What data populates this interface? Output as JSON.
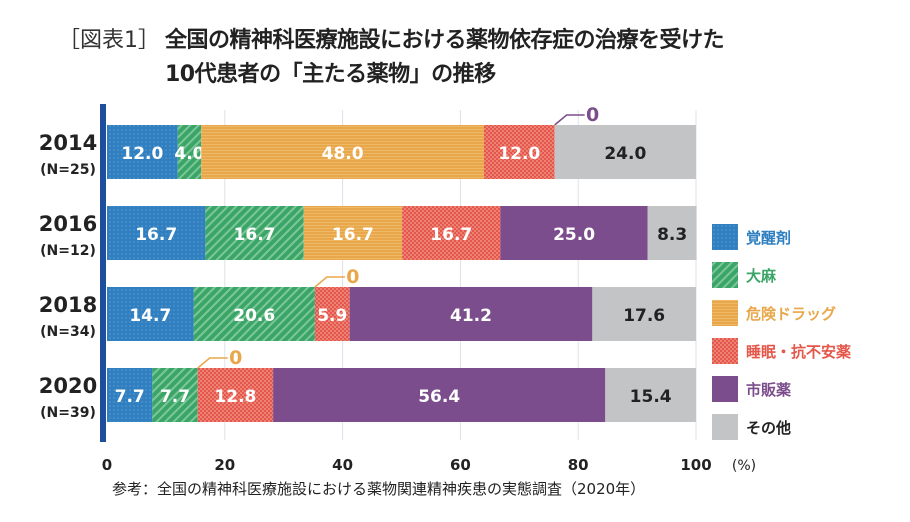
{
  "header": {
    "figure_label": "［図表1］",
    "title_line1": "全国の精神科医療施設における薬物依存症の治療を受けた",
    "title_line2": "10代患者の「主たる薬物」の推移"
  },
  "source": "参考：全国の精神科医療施設における薬物関連精神疾患の実態調査（2020年）",
  "chart_data": {
    "type": "bar",
    "orientation": "horizontal",
    "stacked": true,
    "categories": [
      {
        "year": "2014",
        "n": "(N=25)"
      },
      {
        "year": "2016",
        "n": "(N=12)"
      },
      {
        "year": "2018",
        "n": "(N=34)"
      },
      {
        "year": "2020",
        "n": "(N=39)"
      }
    ],
    "series": [
      {
        "name": "覚醒剤",
        "color": "#2f7fc1",
        "pattern": "dots",
        "values": [
          12.0,
          16.7,
          14.7,
          7.7
        ]
      },
      {
        "name": "大麻",
        "color": "#3aa566",
        "pattern": "stripes",
        "values": [
          4.0,
          16.7,
          20.6,
          7.7
        ]
      },
      {
        "name": "危険ドラッグ",
        "color": "#e9a74b",
        "pattern": "lines",
        "values": [
          48.0,
          16.7,
          0,
          0
        ]
      },
      {
        "name": "睡眠・抗不安薬",
        "color": "#e4574a",
        "pattern": "checker",
        "values": [
          12.0,
          16.7,
          5.9,
          12.8
        ]
      },
      {
        "name": "市販薬",
        "color": "#7b4d8c",
        "pattern": "solid",
        "values": [
          0,
          25.0,
          41.2,
          56.4
        ]
      },
      {
        "name": "その他",
        "color": "#c3c4c6",
        "pattern": "solid",
        "values": [
          24.0,
          8.3,
          17.6,
          15.4
        ]
      }
    ],
    "value_labels": [
      [
        "12.0",
        "4.0",
        "48.0",
        "12.0",
        "0",
        "24.0"
      ],
      [
        "16.7",
        "16.7",
        "16.7",
        "16.7",
        "25.0",
        "8.3"
      ],
      [
        "14.7",
        "20.6",
        "0",
        "5.9",
        "41.2",
        "17.6"
      ],
      [
        "7.7",
        "7.7",
        "0",
        "12.8",
        "56.4",
        "15.4"
      ]
    ],
    "xlim": [
      0,
      100
    ],
    "xticks": [
      "0",
      "20",
      "40",
      "60",
      "80",
      "100"
    ],
    "xunit": "(%)",
    "grid": true,
    "legend": "right"
  }
}
